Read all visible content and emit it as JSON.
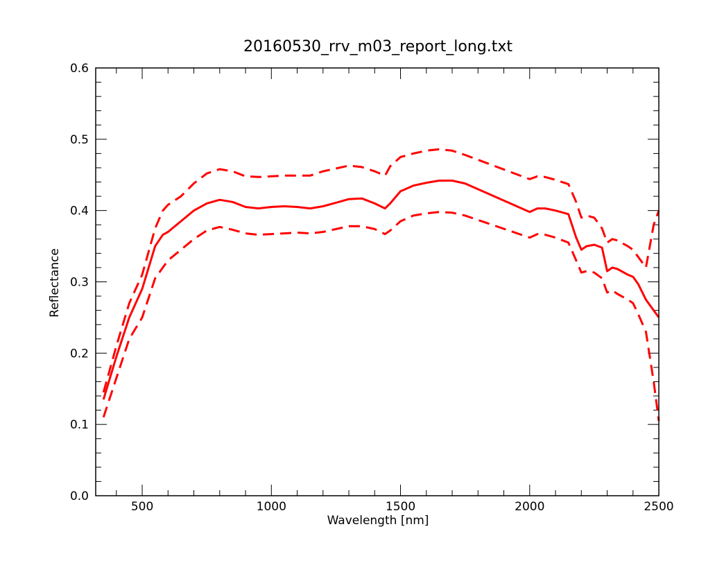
{
  "chart_data": {
    "type": "line",
    "title": "20160530_rrv_m03_report_long.txt",
    "xlabel": "Wavelength [nm]",
    "ylabel": "Reflectance",
    "xlim": [
      320,
      2500
    ],
    "ylim": [
      0.0,
      0.6
    ],
    "xticks": [
      500,
      1000,
      1500,
      2000,
      2500
    ],
    "yticks": [
      0.0,
      0.1,
      0.2,
      0.3,
      0.4,
      0.5,
      0.6
    ],
    "xtick_labels": [
      "500",
      "1000",
      "1500",
      "2000",
      "2500"
    ],
    "ytick_labels": [
      "0.0",
      "0.1",
      "0.2",
      "0.3",
      "0.4",
      "0.5",
      "0.6"
    ],
    "grid": false,
    "color": "#ff0000",
    "series": [
      {
        "style": "solid",
        "x": [
          350,
          400,
          450,
          500,
          550,
          580,
          600,
          650,
          700,
          750,
          800,
          850,
          900,
          950,
          1000,
          1050,
          1100,
          1150,
          1200,
          1250,
          1300,
          1350,
          1400,
          1440,
          1460,
          1500,
          1550,
          1600,
          1650,
          1700,
          1750,
          2000,
          2030,
          2060,
          2100,
          2150,
          2180,
          2200,
          2220,
          2250,
          2280,
          2300,
          2320,
          2340,
          2380,
          2400,
          2420,
          2450,
          2500
        ],
        "values": [
          0.135,
          0.195,
          0.25,
          0.29,
          0.35,
          0.366,
          0.37,
          0.385,
          0.4,
          0.41,
          0.415,
          0.412,
          0.405,
          0.403,
          0.405,
          0.406,
          0.405,
          0.403,
          0.406,
          0.411,
          0.416,
          0.417,
          0.41,
          0.403,
          0.41,
          0.427,
          0.435,
          0.439,
          0.442,
          0.442,
          0.438,
          0.398,
          0.403,
          0.403,
          0.4,
          0.395,
          0.362,
          0.345,
          0.35,
          0.352,
          0.348,
          0.315,
          0.32,
          0.318,
          0.31,
          0.307,
          0.297,
          0.275,
          0.25
        ]
      },
      {
        "style": "dashed",
        "x": [
          350,
          400,
          450,
          500,
          550,
          580,
          600,
          650,
          700,
          750,
          800,
          850,
          900,
          950,
          1000,
          1050,
          1100,
          1150,
          1200,
          1250,
          1300,
          1350,
          1400,
          1440,
          1460,
          1500,
          1550,
          1600,
          1650,
          1700,
          1750,
          2000,
          2030,
          2060,
          2100,
          2150,
          2180,
          2200,
          2220,
          2250,
          2280,
          2300,
          2320,
          2340,
          2380,
          2400,
          2420,
          2450,
          2480,
          2500
        ],
        "values": [
          0.145,
          0.21,
          0.27,
          0.31,
          0.375,
          0.4,
          0.408,
          0.42,
          0.438,
          0.452,
          0.458,
          0.455,
          0.448,
          0.447,
          0.448,
          0.449,
          0.449,
          0.449,
          0.455,
          0.459,
          0.463,
          0.461,
          0.455,
          0.449,
          0.462,
          0.475,
          0.48,
          0.484,
          0.486,
          0.484,
          0.478,
          0.444,
          0.448,
          0.447,
          0.443,
          0.437,
          0.412,
          0.39,
          0.393,
          0.39,
          0.375,
          0.355,
          0.36,
          0.358,
          0.35,
          0.345,
          0.335,
          0.32,
          0.38,
          0.4
        ]
      },
      {
        "style": "dashed",
        "x": [
          350,
          400,
          450,
          500,
          550,
          580,
          600,
          650,
          700,
          750,
          800,
          850,
          900,
          950,
          1000,
          1050,
          1100,
          1150,
          1200,
          1250,
          1300,
          1350,
          1400,
          1440,
          1460,
          1500,
          1550,
          1600,
          1650,
          1700,
          1750,
          2000,
          2030,
          2060,
          2100,
          2150,
          2180,
          2200,
          2220,
          2250,
          2280,
          2300,
          2320,
          2340,
          2380,
          2400,
          2420,
          2450,
          2480,
          2500
        ],
        "values": [
          0.11,
          0.165,
          0.22,
          0.25,
          0.305,
          0.32,
          0.33,
          0.345,
          0.36,
          0.372,
          0.377,
          0.373,
          0.368,
          0.366,
          0.367,
          0.368,
          0.369,
          0.368,
          0.37,
          0.374,
          0.378,
          0.378,
          0.374,
          0.367,
          0.372,
          0.385,
          0.393,
          0.396,
          0.398,
          0.397,
          0.393,
          0.362,
          0.367,
          0.366,
          0.362,
          0.355,
          0.33,
          0.313,
          0.315,
          0.313,
          0.305,
          0.285,
          0.288,
          0.283,
          0.275,
          0.27,
          0.255,
          0.23,
          0.16,
          0.105
        ]
      }
    ]
  }
}
